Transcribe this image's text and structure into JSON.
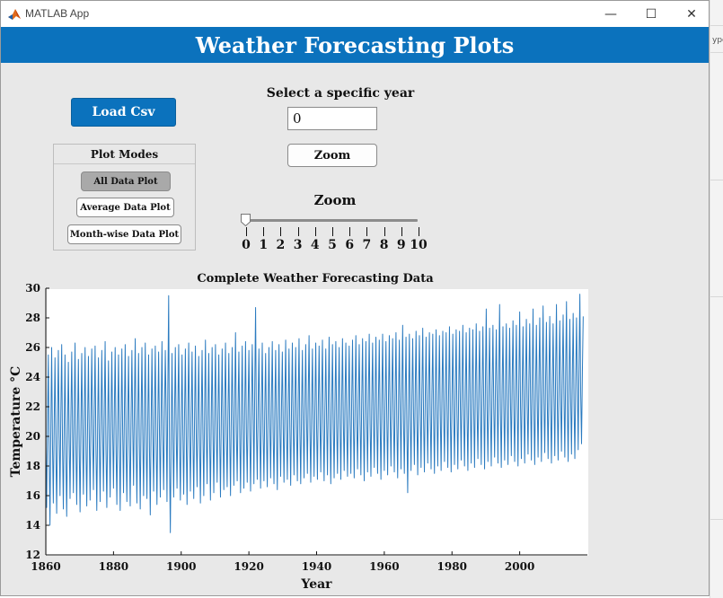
{
  "window": {
    "title": "MATLAB App",
    "buttons": {
      "minimize": "—",
      "maximize": "☐",
      "close": "✕"
    }
  },
  "header": {
    "title": "Weather Forecasting Plots"
  },
  "controls": {
    "load_button": "Load Csv",
    "plot_modes": {
      "title": "Plot Modes",
      "buttons": [
        {
          "label": "All Data Plot",
          "active": true
        },
        {
          "label": "Average Data Plot",
          "active": false
        },
        {
          "label": "Month-wise Data Plot",
          "active": false
        }
      ]
    },
    "year": {
      "label": "Select a specific year",
      "value": "0"
    },
    "zoom_button": "Zoom",
    "zoom_slider": {
      "label": "Zoom",
      "min": 0,
      "max": 10,
      "value": 0,
      "ticks": [
        "0",
        "1",
        "2",
        "3",
        "4",
        "5",
        "6",
        "7",
        "8",
        "9",
        "10"
      ]
    }
  },
  "background_app": {
    "fragment": "ype"
  },
  "colors": {
    "accent": "#0b72bd",
    "line": "#2b7bc0",
    "panel": "#e8e8e8"
  },
  "chart_data": {
    "type": "line",
    "title": "Complete Weather Forecasting Data",
    "xlabel": "Year",
    "ylabel": "Temperature °C",
    "xlim": [
      1860,
      2020
    ],
    "ylim": [
      12,
      30
    ],
    "xticks": [
      "1860",
      "1880",
      "1900",
      "1920",
      "1940",
      "1960",
      "1980",
      "2000"
    ],
    "yticks": [
      "12",
      "14",
      "16",
      "18",
      "20",
      "22",
      "24",
      "26",
      "28",
      "30"
    ],
    "grid": false,
    "series": [
      {
        "description_of_pattern": "",
        "x_start": 1860,
        "x_end": 2020,
        "period_years": 1,
        "summer_peaks": [
          25.5,
          26,
          25.3,
          25.8,
          26.2,
          25.5,
          25,
          25.7,
          26.3,
          25.2,
          25.6,
          26,
          25.4,
          25.9,
          26.1,
          25.3,
          25.8,
          26.4,
          25.1,
          25.7,
          26,
          25.5,
          25.9,
          26.2,
          25.4,
          25.8,
          26.6,
          25.6,
          26,
          26.3,
          25.5,
          25.9,
          26.1,
          25.7,
          26.4,
          25.8,
          29.5,
          25.6,
          26,
          26.2,
          25.5,
          25.9,
          26.3,
          25.7,
          26.1,
          25.4,
          25.8,
          26.5,
          25.6,
          26,
          26.2,
          25.5,
          25.9,
          26.3,
          25.6,
          26,
          27,
          25.7,
          26.1,
          26.4,
          25.8,
          26.2,
          28.7,
          25.9,
          26.3,
          25.6,
          26,
          26.4,
          25.8,
          26.2,
          25.7,
          26.5,
          25.9,
          26.3,
          26,
          26.6,
          25.8,
          26.2,
          26.8,
          25.9,
          26.3,
          26.1,
          26.5,
          25.9,
          26.7,
          26.2,
          26.4,
          26,
          26.6,
          26.3,
          26.1,
          26.5,
          26.8,
          26.2,
          26.6,
          26.4,
          26.9,
          26.3,
          26.7,
          26.5,
          26.9,
          26.4,
          26.8,
          26.6,
          27,
          26.5,
          27.5,
          26.7,
          26.9,
          26.6,
          27.1,
          26.8,
          27.3,
          26.7,
          27,
          26.9,
          27.2,
          26.8,
          27.1,
          27,
          27.4,
          26.9,
          27.2,
          27.1,
          27.5,
          27,
          27.3,
          27.2,
          27.6,
          27.1,
          27.4,
          28.6,
          27.3,
          27.5,
          27.2,
          28.9,
          27.4,
          27.6,
          27.3,
          27.8,
          27.5,
          28.4,
          27.4,
          27.9,
          27.6,
          28.6,
          27.5,
          28,
          28.8,
          27.7,
          28.1,
          27.6,
          28.9,
          27.8,
          28.2,
          29.1,
          27.9,
          28.3,
          28,
          29.6,
          28.1,
          26.7
        ],
        "winter_troughs": [
          15.2,
          14,
          15.5,
          14.8,
          16,
          15.1,
          14.6,
          15.8,
          16.2,
          15.4,
          14.9,
          16.1,
          15.3,
          15.7,
          16.4,
          15,
          15.6,
          16.3,
          15.2,
          15.9,
          16.5,
          15.4,
          15,
          16.2,
          15.6,
          15.3,
          16.7,
          15.5,
          15.1,
          16,
          15.8,
          14.7,
          16.3,
          15.4,
          15.9,
          16.4,
          15.6,
          13.5,
          15.9,
          16.5,
          15.7,
          16.1,
          15.4,
          16.3,
          15.8,
          16.6,
          15.5,
          16,
          16.8,
          15.7,
          16.2,
          16.9,
          15.9,
          16.4,
          16.6,
          16,
          16.7,
          17,
          16.2,
          16.5,
          16.9,
          16.3,
          16.8,
          17.1,
          16.5,
          17,
          16.6,
          17.2,
          16.8,
          16.4,
          17.3,
          16.9,
          17.1,
          16.7,
          17.4,
          17,
          16.8,
          17.2,
          17.5,
          16.9,
          17.3,
          17.1,
          17.6,
          17,
          17.4,
          16.8,
          17.2,
          17.5,
          17.1,
          17.7,
          17.3,
          17.5,
          17.2,
          17.8,
          17.4,
          17,
          17.6,
          17.3,
          17.9,
          17.5,
          17.1,
          17.7,
          17.4,
          18,
          17.6,
          17.2,
          17.8,
          17.5,
          16.2,
          17.7,
          18.1,
          17.4,
          17.9,
          17.6,
          18.2,
          17.8,
          17.5,
          18,
          17.7,
          18.3,
          17.9,
          17.6,
          18.1,
          17.8,
          18.4,
          18,
          17.7,
          18.2,
          17.9,
          18.5,
          18.1,
          17.8,
          18.3,
          18,
          18.6,
          18.2,
          17.9,
          18.4,
          18.1,
          18.7,
          18.3,
          18,
          18.5,
          18.2,
          18.8,
          18.4,
          18.1,
          18.6,
          18.3,
          18.9,
          18.5,
          18.2,
          18.7,
          18.4,
          19,
          18.6,
          18.3,
          18.8,
          18.5,
          19.1,
          19.5
        ]
      }
    ]
  }
}
